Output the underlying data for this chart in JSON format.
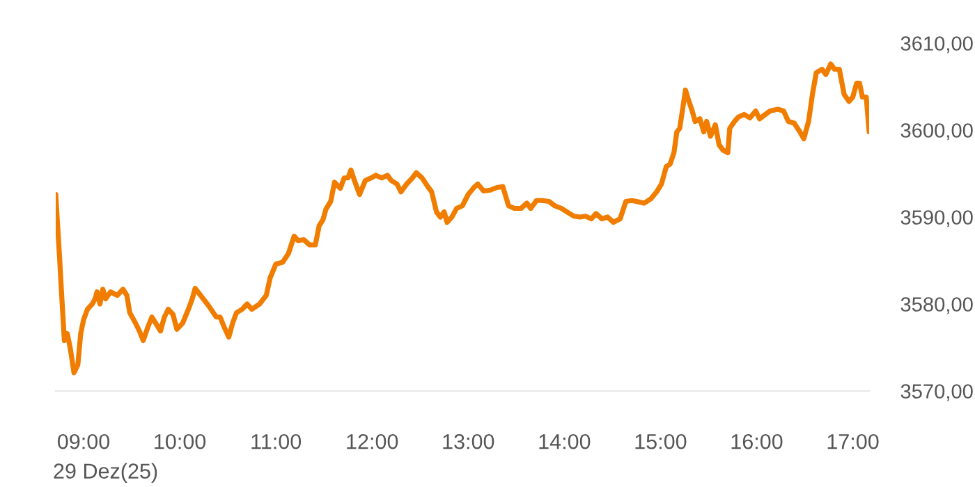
{
  "chart_data": {
    "type": "line",
    "xlim": [
      8.71,
      17.17
    ],
    "ylim": [
      3570,
      3610
    ],
    "xticks": [
      {
        "value": 9,
        "label": "09:00"
      },
      {
        "value": 10,
        "label": "10:00"
      },
      {
        "value": 11,
        "label": "11:00"
      },
      {
        "value": 12,
        "label": "12:00"
      },
      {
        "value": 13,
        "label": "13:00"
      },
      {
        "value": 14,
        "label": "14:00"
      },
      {
        "value": 15,
        "label": "15:00"
      },
      {
        "value": 16,
        "label": "16:00"
      },
      {
        "value": 17,
        "label": "17:00"
      }
    ],
    "yticks": [
      {
        "value": 3570,
        "label": "3570,00"
      },
      {
        "value": 3580,
        "label": "3580,00"
      },
      {
        "value": 3590,
        "label": "3590,00"
      },
      {
        "value": 3600,
        "label": "3600,00"
      },
      {
        "value": 3610,
        "label": "3610,00"
      }
    ],
    "annotations": [
      "29 Dez(25)"
    ],
    "grid": false,
    "marker": "none",
    "line_style": "solid",
    "series": [
      {
        "color": "#f07d00",
        "x": [
          8.71,
          8.75,
          8.77,
          8.8,
          8.83,
          8.86,
          8.9,
          8.94,
          8.97,
          9.0,
          9.04,
          9.09,
          9.12,
          9.14,
          9.17,
          9.2,
          9.23,
          9.28,
          9.35,
          9.41,
          9.45,
          9.48,
          9.54,
          9.58,
          9.62,
          9.67,
          9.71,
          9.75,
          9.8,
          9.84,
          9.88,
          9.93,
          9.97,
          10.03,
          10.09,
          10.13,
          10.16,
          10.23,
          10.3,
          10.38,
          10.42,
          10.46,
          10.51,
          10.55,
          10.59,
          10.65,
          10.7,
          10.75,
          10.83,
          10.9,
          10.94,
          11.0,
          11.07,
          11.13,
          11.19,
          11.23,
          11.29,
          11.35,
          11.41,
          11.45,
          11.49,
          11.52,
          11.57,
          11.61,
          11.67,
          11.71,
          11.75,
          11.78,
          11.83,
          11.87,
          11.93,
          11.99,
          12.04,
          12.1,
          12.16,
          12.2,
          12.26,
          12.3,
          12.36,
          12.42,
          12.46,
          12.52,
          12.58,
          12.62,
          12.67,
          12.71,
          12.75,
          12.78,
          12.83,
          12.88,
          12.94,
          13.0,
          13.06,
          13.1,
          13.16,
          13.23,
          13.3,
          13.36,
          13.42,
          13.48,
          13.55,
          13.61,
          13.65,
          13.71,
          13.77,
          13.84,
          13.9,
          13.97,
          14.04,
          14.1,
          14.16,
          14.22,
          14.28,
          14.33,
          14.39,
          14.45,
          14.51,
          14.58,
          14.64,
          14.7,
          14.75,
          14.83,
          14.9,
          14.96,
          15.01,
          15.06,
          15.1,
          15.14,
          15.17,
          15.2,
          15.26,
          15.29,
          15.33,
          15.36,
          15.41,
          15.45,
          15.48,
          15.52,
          15.57,
          15.61,
          15.65,
          15.7,
          15.72,
          15.77,
          15.81,
          15.87,
          15.93,
          15.99,
          16.03,
          16.09,
          16.14,
          16.22,
          16.28,
          16.33,
          16.39,
          16.45,
          16.49,
          16.54,
          16.58,
          16.62,
          16.68,
          16.72,
          16.77,
          16.81,
          16.86,
          16.91,
          16.96,
          17.0,
          17.04,
          17.07,
          17.1,
          17.14,
          17.17
        ],
        "values": [
          3592.6,
          3585.4,
          3581.4,
          3575.8,
          3576.6,
          3575,
          3572.1,
          3573,
          3576.6,
          3578.2,
          3579.4,
          3580,
          3580.6,
          3581.4,
          3580,
          3581.7,
          3580.6,
          3581.4,
          3581,
          3581.7,
          3581,
          3579,
          3577.8,
          3576.9,
          3575.8,
          3577.4,
          3578.5,
          3577.8,
          3576.9,
          3578.5,
          3579.4,
          3578.8,
          3577.1,
          3577.8,
          3579.4,
          3580.6,
          3581.8,
          3580.8,
          3579.8,
          3578.5,
          3578.5,
          3577.4,
          3576.2,
          3577.8,
          3579,
          3579.4,
          3580,
          3579.4,
          3580,
          3581,
          3583,
          3584.6,
          3584.8,
          3585.8,
          3587.8,
          3587.3,
          3587.4,
          3586.8,
          3586.8,
          3589,
          3589.7,
          3590.9,
          3591.8,
          3594,
          3593.3,
          3594.5,
          3594.5,
          3595.4,
          3593.8,
          3592.6,
          3594.2,
          3594.5,
          3594.8,
          3594.5,
          3594.8,
          3594.2,
          3593.8,
          3592.9,
          3593.8,
          3594.5,
          3595.1,
          3594.5,
          3593.5,
          3592.9,
          3590.6,
          3590,
          3590.6,
          3589.4,
          3590,
          3591,
          3591.3,
          3592.6,
          3593.4,
          3593.8,
          3593,
          3593.1,
          3593.4,
          3593.5,
          3591.3,
          3591,
          3591,
          3591.6,
          3591,
          3591.9,
          3591.9,
          3591.8,
          3591.3,
          3591,
          3590.5,
          3590.1,
          3590,
          3590.1,
          3589.8,
          3590.4,
          3589.8,
          3590,
          3589.4,
          3589.8,
          3591.8,
          3591.9,
          3591.8,
          3591.6,
          3592.1,
          3592.9,
          3593.8,
          3595.8,
          3596.1,
          3597.4,
          3599.8,
          3600.2,
          3604.6,
          3603.5,
          3602.2,
          3601,
          3601.3,
          3599.8,
          3601,
          3599.3,
          3600.6,
          3598.3,
          3597.7,
          3597.4,
          3600.2,
          3601,
          3601.5,
          3601.8,
          3601.4,
          3602.2,
          3601.3,
          3601.8,
          3602.2,
          3602.4,
          3602.2,
          3601,
          3600.8,
          3599.8,
          3599,
          3601,
          3604.1,
          3606.6,
          3607,
          3606.4,
          3607.6,
          3607,
          3607,
          3604.1,
          3603.3,
          3603.8,
          3605.4,
          3605.4,
          3603.8,
          3603.8,
          3599.8
        ]
      }
    ]
  }
}
